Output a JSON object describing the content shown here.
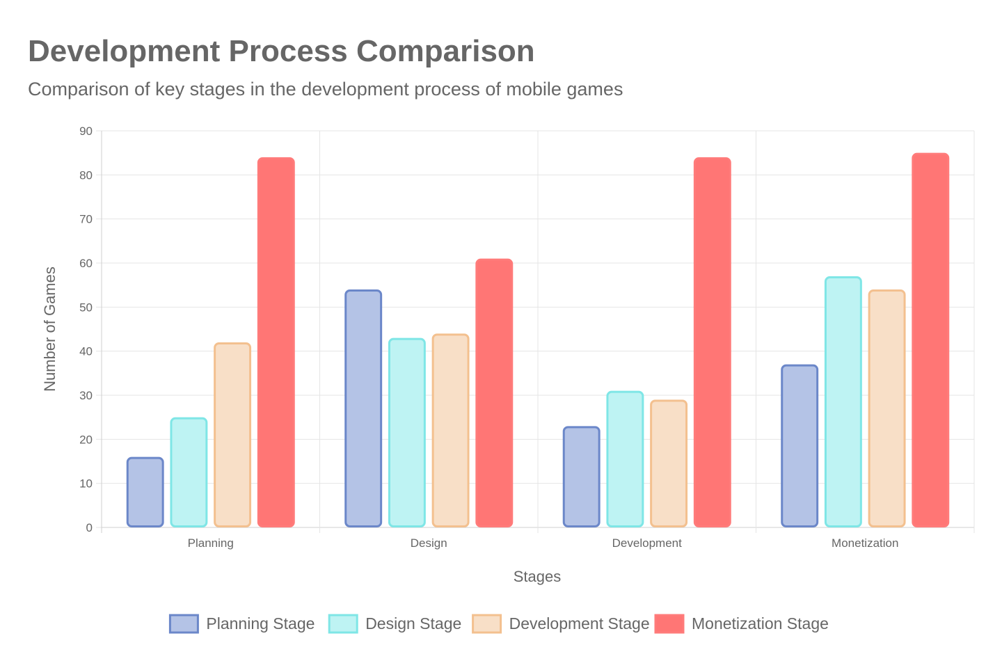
{
  "chart_data": {
    "type": "bar",
    "title": "Development Process Comparison",
    "subtitle": "Comparison of key stages in the development process of mobile games",
    "xlabel": "Stages",
    "ylabel": "Number of Games",
    "categories": [
      "Planning",
      "Design",
      "Development",
      "Monetization"
    ],
    "ylim": [
      0,
      90
    ],
    "yticks": [
      0,
      10,
      20,
      30,
      40,
      50,
      60,
      70,
      80,
      90
    ],
    "grid": true,
    "legend_position": "bottom",
    "series": [
      {
        "name": "Planning Stage",
        "values": [
          16,
          54,
          23,
          37
        ],
        "fill": "#b4c3e6",
        "stroke": "#6b87c9"
      },
      {
        "name": "Design Stage",
        "values": [
          25,
          43,
          31,
          57
        ],
        "fill": "#bef3f3",
        "stroke": "#7fe6e6"
      },
      {
        "name": "Development Stage",
        "values": [
          42,
          44,
          29,
          54
        ],
        "fill": "#f8dfc7",
        "stroke": "#f3c08f"
      },
      {
        "name": "Monetization Stage",
        "values": [
          84,
          61,
          84,
          85
        ],
        "fill": "#ff7675",
        "stroke": "#ff7b7a"
      }
    ]
  }
}
